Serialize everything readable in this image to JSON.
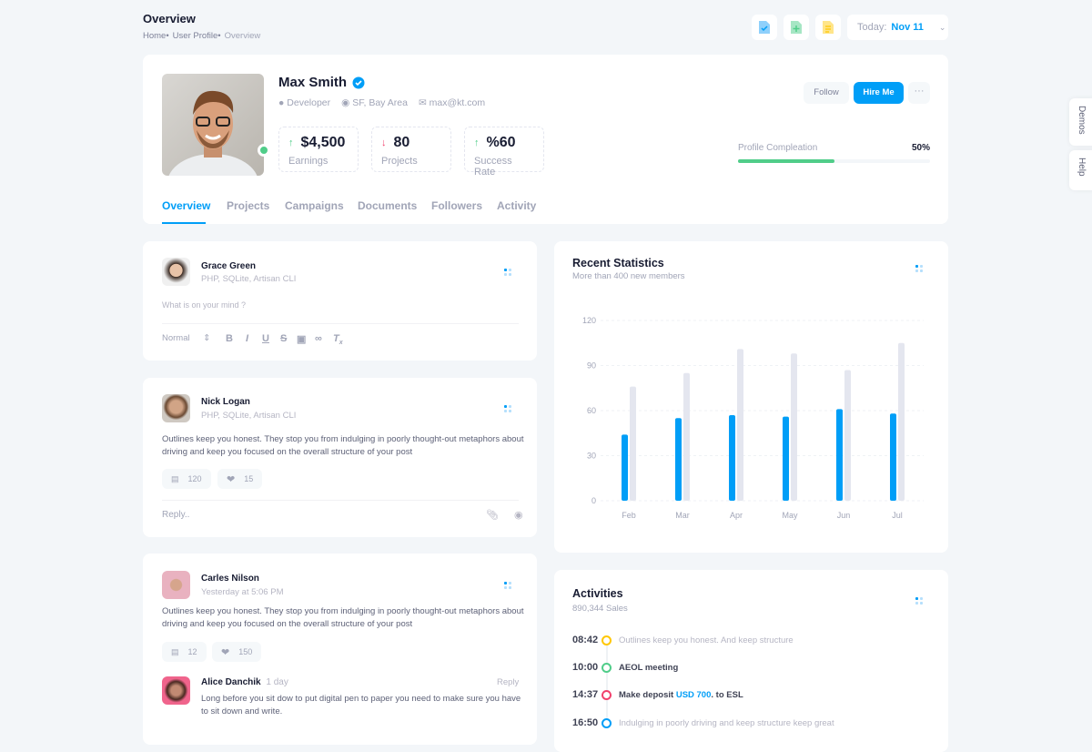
{
  "header": {
    "title": "Overview",
    "breadcrumbs": [
      "Home•",
      "User Profile•",
      "Overview"
    ],
    "toolbar": {
      "icons": [
        "file-check-icon",
        "file-add-icon",
        "file-text-icon"
      ],
      "date_label": "Today:",
      "date_value": "Nov 11"
    }
  },
  "profile": {
    "name": "Max Smith",
    "role": "Developer",
    "location": "SF, Bay Area",
    "email": "max@kt.com",
    "stats": [
      {
        "value": "$4,500",
        "label": "Earnings",
        "trend": "up"
      },
      {
        "value": "80",
        "label": "Projects",
        "trend": "down"
      },
      {
        "value": "%60",
        "label": "Success Rate",
        "trend": "up"
      }
    ],
    "follow": "Follow",
    "hire": "Hire Me",
    "completion_label": "Profile Compleation",
    "completion_value": "50%",
    "completion": 50,
    "tabs": [
      "Overview",
      "Projects",
      "Campaigns",
      "Documents",
      "Followers",
      "Activity"
    ],
    "active_tab": "Overview"
  },
  "side_tabs": [
    "Demos",
    "Help"
  ],
  "composer": {
    "name": "Grace Green",
    "sub": "PHP, SQLite, Artisan CLI",
    "placeholder": "What is on your mind ?",
    "format": "Normal"
  },
  "post1": {
    "name": "Nick Logan",
    "sub": "PHP, SQLite, Artisan CLI",
    "text": "Outlines keep you honest. They stop you from indulging in poorly thought-out metaphors about driving and keep you focused on the overall structure of your post",
    "comments": "120",
    "likes": "15",
    "reply_placeholder": "Reply.."
  },
  "post2": {
    "name": "Carles Nilson",
    "sub": "Yesterday at 5:06 PM",
    "text": "Outlines keep you honest. They stop you from indulging in poorly thought-out metaphors about driving and keep you focused on the overall structure of your post",
    "comments": "12",
    "likes": "150",
    "reply": {
      "name": "Alice Danchik",
      "time": "1 day",
      "action": "Reply",
      "text": "Long before you sit dow to put digital pen to paper you need to make sure you have to sit down and write."
    }
  },
  "stats_card": {
    "title": "Recent Statistics",
    "subtitle": "More than 400 new members"
  },
  "chart_data": {
    "type": "bar",
    "categories": [
      "Feb",
      "Mar",
      "Apr",
      "May",
      "Jun",
      "Jul"
    ],
    "series": [
      {
        "values": [
          44,
          55,
          57,
          56,
          61,
          58
        ],
        "color": "#009ef7"
      },
      {
        "values": [
          76,
          85,
          101,
          98,
          87,
          105
        ],
        "color": "#e4e6ef"
      }
    ],
    "ylim": [
      0,
      120
    ],
    "yticks": [
      0,
      30,
      60,
      90,
      120
    ],
    "grid": true
  },
  "activities": {
    "title": "Activities",
    "subtitle": "890,344 Sales",
    "items": [
      {
        "time": "08:42",
        "text": "Outlines keep you honest. And keep structure",
        "color": "#ffc700",
        "bold": false
      },
      {
        "time": "10:00",
        "text": "AEOL meeting",
        "color": "#50cd89",
        "bold": true
      },
      {
        "time": "14:37",
        "text": "Make deposit ",
        "link": "USD 700",
        "after": ". to ESL",
        "color": "#f1416c",
        "bold": true
      },
      {
        "time": "16:50",
        "text": "Indulging in poorly driving and keep structure keep great",
        "color": "#009ef7",
        "bold": false
      }
    ]
  },
  "colors": {
    "primary": "#009ef7",
    "success": "#50cd89",
    "danger": "#f1416c",
    "warning": "#ffc700"
  }
}
